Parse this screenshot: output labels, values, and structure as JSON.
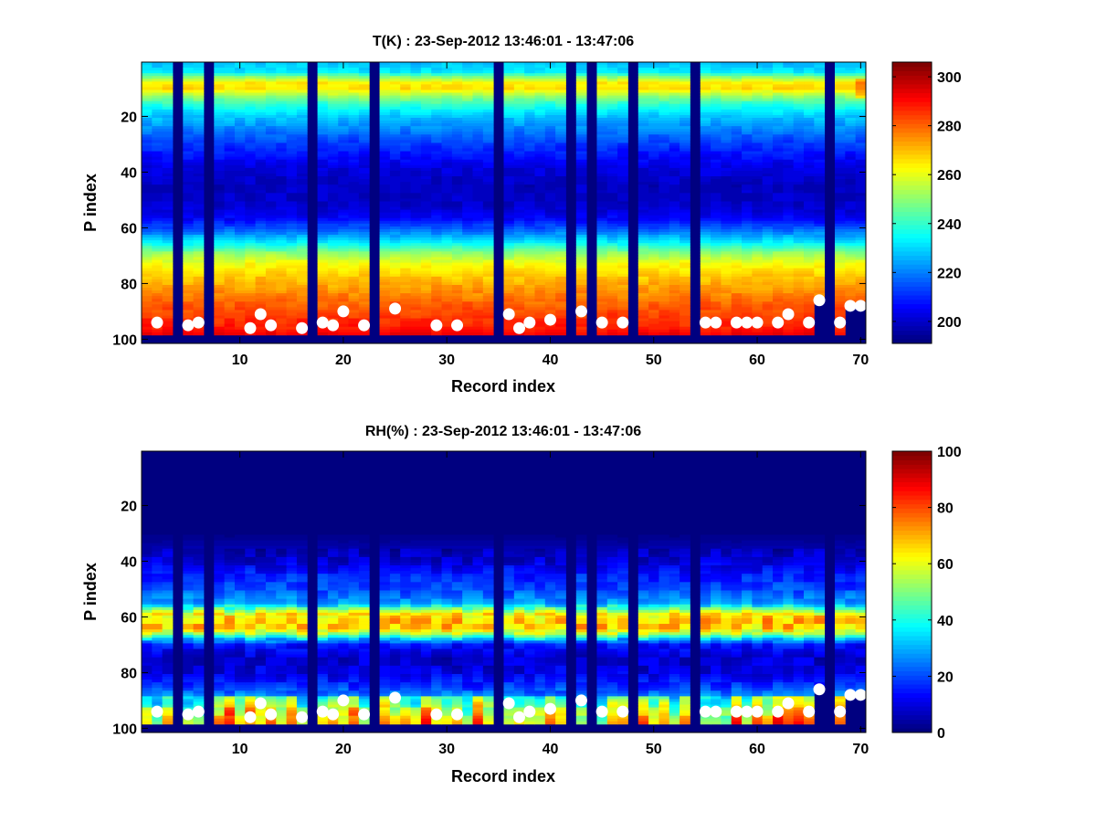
{
  "chart_data": [
    {
      "type": "heatmap",
      "title": "T(K) : 23-Sep-2012 13:46:01 - 13:47:06",
      "xlabel": "Record index",
      "ylabel": "P index",
      "xlim": [
        0.5,
        70.5
      ],
      "ylim": [
        0.5,
        101.5
      ],
      "y_reversed": true,
      "xticks": [
        10,
        20,
        30,
        40,
        50,
        60,
        70
      ],
      "yticks": [
        20,
        40,
        60,
        80,
        100
      ],
      "colorbar": {
        "clim": [
          191,
          306
        ],
        "ticks": [
          200,
          220,
          240,
          260,
          280,
          300
        ],
        "colormap": "jet"
      },
      "profile_knots": [
        [
          1,
          228
        ],
        [
          4,
          232
        ],
        [
          6,
          250
        ],
        [
          8,
          264
        ],
        [
          10,
          266
        ],
        [
          13,
          250
        ],
        [
          16,
          238
        ],
        [
          20,
          228
        ],
        [
          25,
          220
        ],
        [
          30,
          212
        ],
        [
          38,
          203
        ],
        [
          45,
          199
        ],
        [
          52,
          200
        ],
        [
          57,
          206
        ],
        [
          61,
          218
        ],
        [
          65,
          232
        ],
        [
          69,
          250
        ],
        [
          73,
          262
        ],
        [
          77,
          268
        ],
        [
          82,
          274
        ],
        [
          87,
          280
        ],
        [
          92,
          285
        ],
        [
          96,
          288
        ],
        [
          98,
          292
        ]
      ],
      "missing_records": [
        4,
        7,
        17,
        23,
        35,
        42,
        44,
        48,
        54,
        67
      ],
      "records": 70,
      "levels": 98,
      "surface_points": [
        [
          2,
          94
        ],
        [
          5,
          95
        ],
        [
          6,
          94
        ],
        [
          11,
          96
        ],
        [
          12,
          91
        ],
        [
          13,
          95
        ],
        [
          16,
          96
        ],
        [
          18,
          94
        ],
        [
          19,
          95
        ],
        [
          20,
          90
        ],
        [
          22,
          95
        ],
        [
          25,
          89
        ],
        [
          29,
          95
        ],
        [
          31,
          95
        ],
        [
          36,
          91
        ],
        [
          37,
          96
        ],
        [
          38,
          94
        ],
        [
          40,
          93
        ],
        [
          43,
          90
        ],
        [
          45,
          94
        ],
        [
          47,
          94
        ],
        [
          55,
          94
        ],
        [
          56,
          94
        ],
        [
          58,
          94
        ],
        [
          59,
          94
        ],
        [
          60,
          94
        ],
        [
          62,
          94
        ],
        [
          63,
          91
        ],
        [
          65,
          94
        ],
        [
          66,
          86
        ],
        [
          68,
          94
        ],
        [
          69,
          88
        ],
        [
          70,
          88
        ]
      ],
      "data_ends_at_surface": [
        66,
        69,
        70
      ]
    },
    {
      "type": "heatmap",
      "title": "RH(%) : 23-Sep-2012 13:46:01 - 13:47:06",
      "xlabel": "Record index",
      "ylabel": "P index",
      "xlim": [
        0.5,
        70.5
      ],
      "ylim": [
        0.5,
        101.5
      ],
      "y_reversed": true,
      "xticks": [
        10,
        20,
        30,
        40,
        50,
        60,
        70
      ],
      "yticks": [
        20,
        40,
        60,
        80,
        100
      ],
      "colorbar": {
        "clim": [
          0,
          100
        ],
        "ticks": [
          0,
          20,
          40,
          60,
          80,
          100
        ],
        "colormap": "jet"
      },
      "profile_knots": [
        [
          1,
          1
        ],
        [
          30,
          1
        ],
        [
          34,
          4
        ],
        [
          40,
          9
        ],
        [
          45,
          16
        ],
        [
          50,
          20
        ],
        [
          55,
          28
        ],
        [
          57,
          45
        ],
        [
          59,
          62
        ],
        [
          61,
          68
        ],
        [
          64,
          68
        ],
        [
          66,
          55
        ],
        [
          68,
          32
        ],
        [
          70,
          15
        ],
        [
          75,
          8
        ],
        [
          80,
          10
        ],
        [
          85,
          18
        ],
        [
          90,
          30
        ],
        [
          94,
          42
        ],
        [
          98,
          50
        ]
      ],
      "missing_records": [
        4,
        7,
        17,
        23,
        35,
        42,
        44,
        48,
        54,
        67
      ],
      "records": 70,
      "levels": 98,
      "surface_points": [
        [
          2,
          94
        ],
        [
          5,
          95
        ],
        [
          6,
          94
        ],
        [
          11,
          96
        ],
        [
          12,
          91
        ],
        [
          13,
          95
        ],
        [
          16,
          96
        ],
        [
          18,
          94
        ],
        [
          19,
          95
        ],
        [
          20,
          90
        ],
        [
          22,
          95
        ],
        [
          25,
          89
        ],
        [
          29,
          95
        ],
        [
          31,
          95
        ],
        [
          36,
          91
        ],
        [
          37,
          96
        ],
        [
          38,
          94
        ],
        [
          40,
          93
        ],
        [
          43,
          90
        ],
        [
          45,
          94
        ],
        [
          47,
          94
        ],
        [
          55,
          94
        ],
        [
          56,
          94
        ],
        [
          58,
          94
        ],
        [
          59,
          94
        ],
        [
          60,
          94
        ],
        [
          62,
          94
        ],
        [
          63,
          91
        ],
        [
          65,
          94
        ],
        [
          66,
          86
        ],
        [
          68,
          94
        ],
        [
          69,
          88
        ],
        [
          70,
          88
        ]
      ],
      "data_ends_at_surface": [
        66,
        69,
        70
      ]
    }
  ],
  "colors": {
    "missing": "#000080",
    "marker": "#ffffff"
  }
}
